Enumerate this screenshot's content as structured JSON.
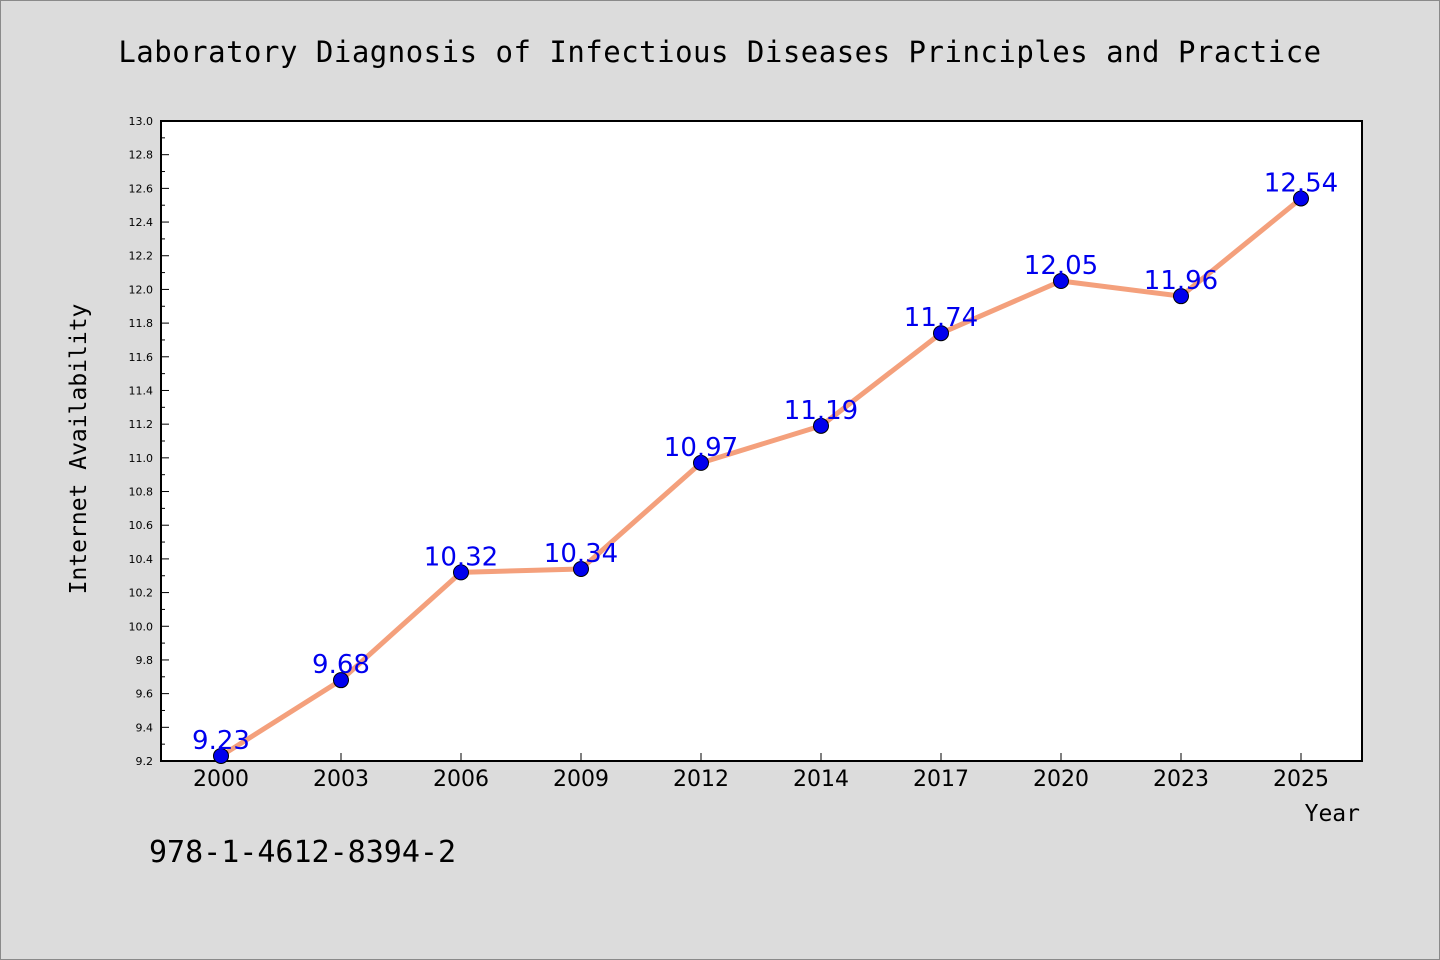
{
  "title": "Laboratory Diagnosis of Infectious Diseases Principles and Practice",
  "footer_code": "978-1-4612-8394-2",
  "chart_data": {
    "type": "line",
    "title": "Laboratory Diagnosis of Infectious Diseases Principles and Practice",
    "xlabel": "Year",
    "ylabel": "Internet Availability",
    "categories": [
      "2000",
      "2003",
      "2006",
      "2009",
      "2012",
      "2014",
      "2017",
      "2020",
      "2023",
      "2025"
    ],
    "values": [
      9.23,
      9.68,
      10.32,
      10.34,
      10.97,
      11.19,
      11.74,
      12.05,
      11.96,
      12.54
    ],
    "data_labels": [
      "9.23",
      "9.68",
      "10.32",
      "10.34",
      "10.97",
      "11.19",
      "11.74",
      "12.05",
      "11.96",
      "12.54"
    ],
    "ylim": [
      9.2,
      13.0
    ],
    "yticks": [
      "9.2",
      "9.4",
      "9.6",
      "9.8",
      "10.0",
      "10.2",
      "10.4",
      "10.6",
      "10.8",
      "11.0",
      "11.2",
      "11.4",
      "11.6",
      "11.8",
      "12.0",
      "12.2",
      "12.4",
      "12.6",
      "12.8",
      "13.0"
    ],
    "grid": false,
    "legend": "none",
    "colors": {
      "line": "#f4a07c",
      "marker": "#0000ee",
      "label": "#0000ee",
      "background": "#dcdcdc",
      "plot_background": "#ffffff"
    }
  }
}
